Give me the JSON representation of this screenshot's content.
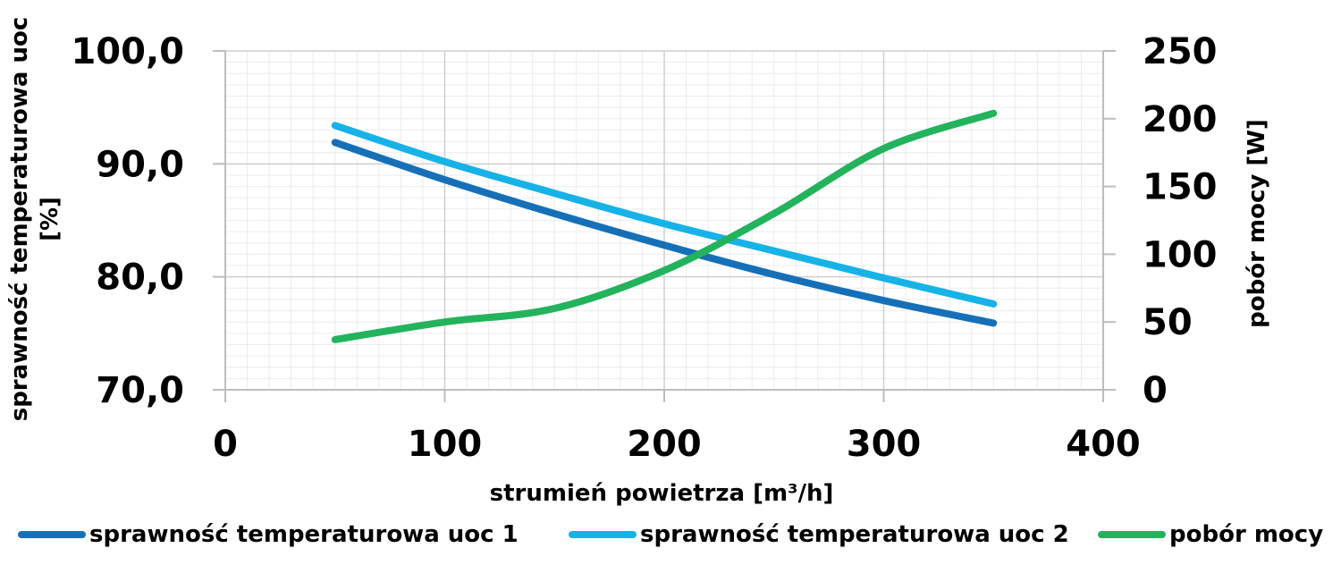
{
  "chart_data": {
    "type": "line",
    "xlabel": "strumień powietrza [m³/h]",
    "ylabel_left": "sprawność temperaturowa uoc [%]",
    "ylabel_left_lines": [
      "sprawność temperaturowa uoc",
      "[%]"
    ],
    "ylabel_right": "pobór mocy [W]",
    "xlim": [
      0,
      400
    ],
    "ylim_left": [
      70,
      100
    ],
    "ylim_right": [
      0,
      250
    ],
    "x_ticks": [
      "0",
      "100",
      "200",
      "300",
      "400"
    ],
    "y_left_ticks": [
      "70,0",
      "80,0",
      "90,0",
      "100,0"
    ],
    "y_right_ticks": [
      "0",
      "50",
      "100",
      "150",
      "200",
      "250"
    ],
    "grid": true,
    "legend_position": "bottom",
    "series": [
      {
        "name": "sprawność temperaturowa uoc 1",
        "axis": "left",
        "color": "#1570b8",
        "x": [
          50,
          100,
          150,
          200,
          250,
          300,
          350
        ],
        "y": [
          91.9,
          88.6,
          85.6,
          82.8,
          80.2,
          77.9,
          75.9
        ]
      },
      {
        "name": "sprawność temperaturowa uoc 2",
        "axis": "left",
        "color": "#16b2e8",
        "x": [
          50,
          100,
          150,
          200,
          250,
          300,
          350
        ],
        "y": [
          93.4,
          90.2,
          87.4,
          84.7,
          82.3,
          79.9,
          77.6
        ]
      },
      {
        "name": "pobór mocy",
        "axis": "right",
        "color": "#23b35c",
        "x": [
          50,
          100,
          150,
          200,
          250,
          300,
          350
        ],
        "y": [
          37,
          50,
          60,
          88,
          130,
          178,
          204
        ]
      }
    ]
  }
}
